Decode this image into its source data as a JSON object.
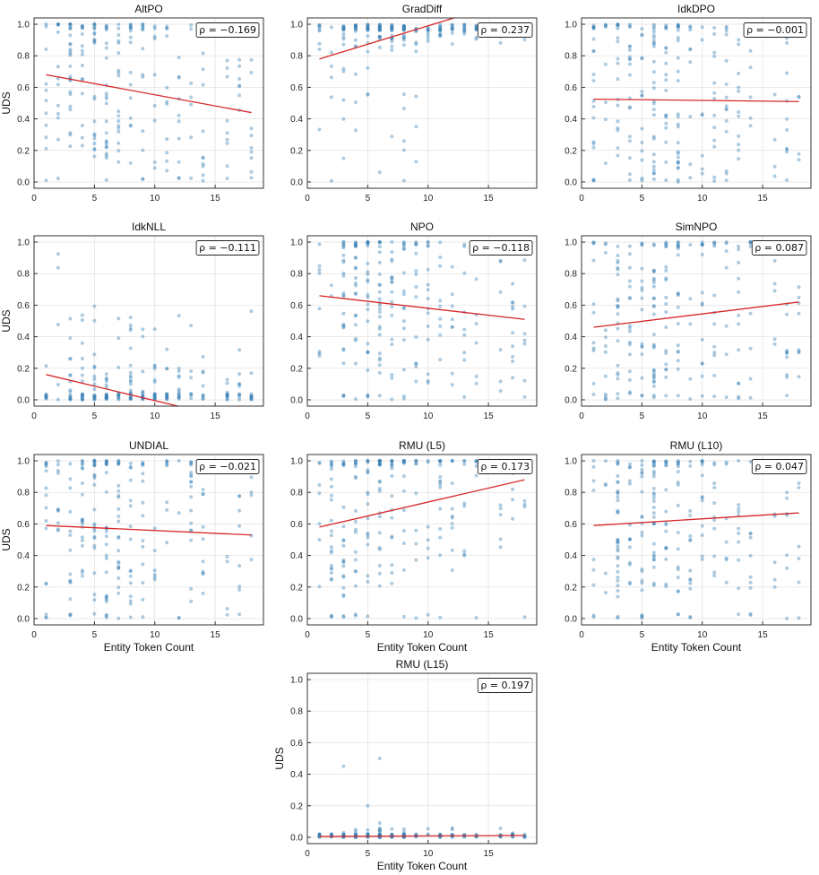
{
  "figure_axes": {
    "x_label": "Entity Token Count",
    "y_label": "UDS"
  },
  "chart_data": [
    {
      "type": "scatter",
      "title": "AltPO",
      "rho_text": "ρ = −0.169",
      "rho": -0.169,
      "xlabel": "",
      "ylabel": "UDS",
      "xlim": [
        0,
        19
      ],
      "ylim": [
        -0.04,
        1.04
      ],
      "xticks": [
        0,
        5,
        10,
        15
      ],
      "yticks": [
        0.0,
        0.2,
        0.4,
        0.6,
        0.8,
        1.0
      ],
      "trend": {
        "x": [
          1,
          18
        ],
        "y": [
          0.68,
          0.44
        ]
      },
      "point_profile": {
        "pattern": "spread",
        "mean_y": 0.58
      }
    },
    {
      "type": "scatter",
      "title": "GradDiff",
      "rho_text": "ρ = 0.237",
      "rho": 0.237,
      "xlabel": "",
      "ylabel": "",
      "xlim": [
        0,
        19
      ],
      "ylim": [
        -0.04,
        1.04
      ],
      "xticks": [
        0,
        5,
        10,
        15
      ],
      "yticks": [
        0.0,
        0.2,
        0.4,
        0.6,
        0.8,
        1.0
      ],
      "trend": {
        "x": [
          1,
          13
        ],
        "y": [
          0.78,
          1.06
        ]
      },
      "point_profile": {
        "pattern": "high",
        "mean_y": 0.9
      }
    },
    {
      "type": "scatter",
      "title": "IdkDPO",
      "rho_text": "ρ = −0.001",
      "rho": -0.001,
      "xlabel": "",
      "ylabel": "",
      "xlim": [
        0,
        19
      ],
      "ylim": [
        -0.04,
        1.04
      ],
      "xticks": [
        0,
        5,
        10,
        15
      ],
      "yticks": [
        0.0,
        0.2,
        0.4,
        0.6,
        0.8,
        1.0
      ],
      "trend": {
        "x": [
          1,
          18
        ],
        "y": [
          0.525,
          0.51
        ]
      },
      "point_profile": {
        "pattern": "spread",
        "mean_y": 0.52
      }
    },
    {
      "type": "scatter",
      "title": "IdkNLL",
      "rho_text": "ρ = −0.111",
      "rho": -0.111,
      "xlabel": "",
      "ylabel": "UDS",
      "xlim": [
        0,
        19
      ],
      "ylim": [
        -0.04,
        1.04
      ],
      "xticks": [
        0,
        5,
        10,
        15
      ],
      "yticks": [
        0.0,
        0.2,
        0.4,
        0.6,
        0.8,
        1.0
      ],
      "trend": {
        "x": [
          1,
          13
        ],
        "y": [
          0.16,
          -0.06
        ]
      },
      "point_profile": {
        "pattern": "low",
        "mean_y": 0.05
      }
    },
    {
      "type": "scatter",
      "title": "NPO",
      "rho_text": "ρ = −0.118",
      "rho": -0.118,
      "xlabel": "",
      "ylabel": "",
      "xlim": [
        0,
        19
      ],
      "ylim": [
        -0.04,
        1.04
      ],
      "xticks": [
        0,
        5,
        10,
        15
      ],
      "yticks": [
        0.0,
        0.2,
        0.4,
        0.6,
        0.8,
        1.0
      ],
      "trend": {
        "x": [
          1,
          18
        ],
        "y": [
          0.66,
          0.51
        ]
      },
      "point_profile": {
        "pattern": "spread",
        "mean_y": 0.62
      }
    },
    {
      "type": "scatter",
      "title": "SimNPO",
      "rho_text": "ρ = 0.087",
      "rho": 0.087,
      "xlabel": "",
      "ylabel": "",
      "xlim": [
        0,
        19
      ],
      "ylim": [
        -0.04,
        1.04
      ],
      "xticks": [
        0,
        5,
        10,
        15
      ],
      "yticks": [
        0.0,
        0.2,
        0.4,
        0.6,
        0.8,
        1.0
      ],
      "trend": {
        "x": [
          1,
          18
        ],
        "y": [
          0.46,
          0.62
        ]
      },
      "point_profile": {
        "pattern": "spread",
        "mean_y": 0.5
      }
    },
    {
      "type": "scatter",
      "title": "UNDIAL",
      "rho_text": "ρ = −0.021",
      "rho": -0.021,
      "xlabel": "Entity Token Count",
      "ylabel": "UDS",
      "xlim": [
        0,
        19
      ],
      "ylim": [
        -0.04,
        1.04
      ],
      "xticks": [
        0,
        5,
        10,
        15
      ],
      "yticks": [
        0.0,
        0.2,
        0.4,
        0.6,
        0.8,
        1.0
      ],
      "trend": {
        "x": [
          1,
          18
        ],
        "y": [
          0.59,
          0.53
        ]
      },
      "point_profile": {
        "pattern": "spread",
        "mean_y": 0.57
      }
    },
    {
      "type": "scatter",
      "title": "RMU (L5)",
      "rho_text": "ρ = 0.173",
      "rho": 0.173,
      "xlabel": "Entity Token Count",
      "ylabel": "",
      "xlim": [
        0,
        19
      ],
      "ylim": [
        -0.04,
        1.04
      ],
      "xticks": [
        0,
        5,
        10,
        15
      ],
      "yticks": [
        0.0,
        0.2,
        0.4,
        0.6,
        0.8,
        1.0
      ],
      "trend": {
        "x": [
          1,
          18
        ],
        "y": [
          0.58,
          0.88
        ]
      },
      "point_profile": {
        "pattern": "spread",
        "mean_y": 0.66
      }
    },
    {
      "type": "scatter",
      "title": "RMU (L10)",
      "rho_text": "ρ = 0.047",
      "rho": 0.047,
      "xlabel": "Entity Token Count",
      "ylabel": "",
      "xlim": [
        0,
        19
      ],
      "ylim": [
        -0.04,
        1.04
      ],
      "xticks": [
        0,
        5,
        10,
        15
      ],
      "yticks": [
        0.0,
        0.2,
        0.4,
        0.6,
        0.8,
        1.0
      ],
      "trend": {
        "x": [
          1,
          18
        ],
        "y": [
          0.59,
          0.67
        ]
      },
      "point_profile": {
        "pattern": "spread",
        "mean_y": 0.62
      }
    },
    {
      "type": "scatter",
      "title": "RMU (L15)",
      "rho_text": "ρ = 0.197",
      "rho": 0.197,
      "xlabel": "Entity Token Count",
      "ylabel": "UDS",
      "xlim": [
        0,
        19
      ],
      "ylim": [
        -0.04,
        1.04
      ],
      "xticks": [
        0,
        5,
        10,
        15
      ],
      "yticks": [
        0.0,
        0.2,
        0.4,
        0.6,
        0.8,
        1.0
      ],
      "trend": {
        "x": [
          1,
          18
        ],
        "y": [
          0.005,
          0.012
        ]
      },
      "point_profile": {
        "pattern": "near-zero",
        "mean_y": 0.01,
        "outliers": [
          [
            3,
            0.45
          ],
          [
            6,
            0.5
          ],
          [
            5,
            0.2
          ],
          [
            6,
            0.09
          ]
        ]
      }
    }
  ]
}
